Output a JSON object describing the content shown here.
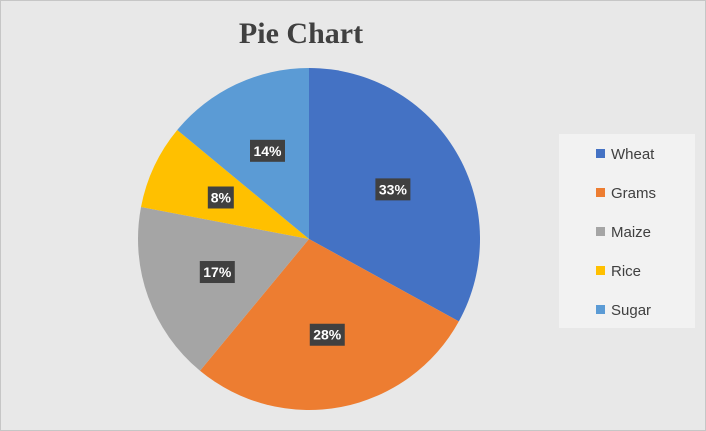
{
  "chart_data": {
    "type": "pie",
    "title": "Pie Chart",
    "categories": [
      "Wheat",
      "Grams",
      "Maize",
      "Rice",
      "Sugar"
    ],
    "values": [
      33,
      28,
      17,
      8,
      14
    ],
    "labels": [
      "33%",
      "28%",
      "17%",
      "8%",
      "14%"
    ],
    "colors": [
      "#4472c4",
      "#ed7d31",
      "#a5a5a5",
      "#ffc000",
      "#5b9bd5"
    ],
    "legend_position": "right",
    "start_angle": "12 o'clock, clockwise"
  }
}
